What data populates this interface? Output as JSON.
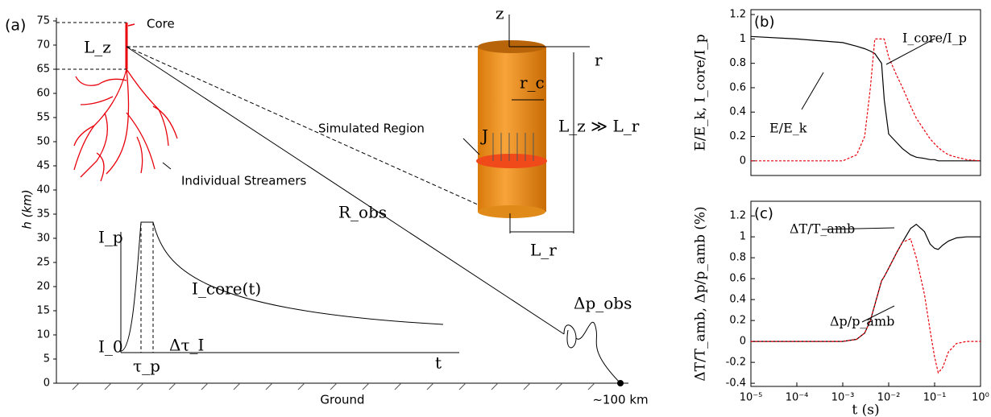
{
  "chart_data": [
    {
      "type": "diagram",
      "panel": "(a)",
      "ylabel": "h (km)",
      "ylim": [
        0,
        75
      ],
      "yticks": [
        0,
        5,
        10,
        15,
        20,
        25,
        30,
        35,
        40,
        45,
        50,
        55,
        60,
        65,
        70,
        75
      ],
      "labels": {
        "core": "Core",
        "lz": "L_z",
        "streamers": "Individual Streamers",
        "robs": "R_obs",
        "region": "Simulated Region",
        "j": "J",
        "rc": "r_c",
        "lzlr": "L_z ≫ L_r",
        "z": "z",
        "r": "r",
        "lr": "L_r",
        "ip": "I_p",
        "icore": "I_core(t)",
        "i0": "I_0",
        "dtau": "Δτ_I",
        "taup": "τ_p",
        "t": "t",
        "dpobs": "Δp_obs",
        "ground": "Ground",
        "dist": "~100 km"
      }
    },
    {
      "type": "line",
      "panel": "(b)",
      "ylabel": "E/E_k,   I_core/I_p",
      "xlog": true,
      "x": [
        1e-05,
        0.0001,
        0.001,
        0.002,
        0.003,
        0.004,
        0.005,
        0.007,
        0.008,
        0.01,
        0.015,
        0.02,
        0.03,
        0.04,
        0.06,
        0.08,
        0.1,
        0.12,
        0.15,
        0.2,
        0.3,
        0.5,
        1
      ],
      "xlim": [
        1e-05,
        1
      ],
      "ylim": [
        -0.12,
        1.24
      ],
      "yticks": [
        0,
        0.2,
        0.4,
        0.6,
        0.8,
        1,
        1.2
      ],
      "series": [
        {
          "name": "E/E_k",
          "color": "#000000",
          "dash": false,
          "values": [
            1.02,
            1.0,
            0.97,
            0.94,
            0.92,
            0.9,
            0.88,
            0.8,
            0.5,
            0.22,
            0.15,
            0.1,
            0.05,
            0.03,
            0.02,
            0.01,
            0.01,
            0,
            0,
            0,
            0,
            0,
            0
          ]
        },
        {
          "name": "I_core/I_p",
          "color": "#e8000b",
          "dash": true,
          "values": [
            0,
            0,
            0,
            0.05,
            0.2,
            0.6,
            1,
            1,
            1,
            0.85,
            0.7,
            0.6,
            0.45,
            0.35,
            0.25,
            0.18,
            0.14,
            0.11,
            0.08,
            0.05,
            0.03,
            0.01,
            0
          ]
        }
      ]
    },
    {
      "type": "line",
      "panel": "(c)",
      "ylabel": "ΔT/T_amb,   Δp/p_amb   (%)",
      "xlabel": "t (s)",
      "xlog": true,
      "x": [
        1e-05,
        0.0001,
        0.001,
        0.002,
        0.003,
        0.004,
        0.005,
        0.007,
        0.008,
        0.01,
        0.015,
        0.02,
        0.03,
        0.04,
        0.06,
        0.08,
        0.1,
        0.12,
        0.15,
        0.2,
        0.3,
        0.5,
        1
      ],
      "xlim": [
        1e-05,
        1
      ],
      "xticks": [
        {
          "value": 1e-05,
          "label": "10⁻⁵"
        },
        {
          "value": 0.0001,
          "label": "10⁻⁴"
        },
        {
          "value": 0.001,
          "label": "10⁻³"
        },
        {
          "value": 0.01,
          "label": "10⁻²"
        },
        {
          "value": 0.1,
          "label": "10⁻¹"
        },
        {
          "value": 1,
          "label": "10⁰"
        }
      ],
      "ylim": [
        -0.43,
        1.34
      ],
      "yticks": [
        -0.4,
        -0.2,
        0,
        0.2,
        0.4,
        0.6,
        0.8,
        1,
        1.2
      ],
      "series": [
        {
          "name": "ΔT/T_amb",
          "color": "#000000",
          "dash": false,
          "values": [
            0,
            0,
            0,
            0.02,
            0.08,
            0.2,
            0.35,
            0.58,
            0.62,
            0.7,
            0.85,
            0.95,
            1.08,
            1.12,
            1.05,
            0.93,
            0.89,
            0.88,
            0.92,
            0.96,
            0.99,
            1.0,
            1.0
          ]
        },
        {
          "name": "Δp/p_amb",
          "color": "#e8000b",
          "dash": true,
          "values": [
            0,
            0,
            0,
            0.02,
            0.08,
            0.2,
            0.35,
            0.58,
            0.62,
            0.7,
            0.85,
            0.95,
            0.98,
            0.8,
            0.45,
            0.1,
            -0.15,
            -0.3,
            -0.25,
            -0.1,
            -0.02,
            0,
            0
          ]
        }
      ]
    }
  ]
}
